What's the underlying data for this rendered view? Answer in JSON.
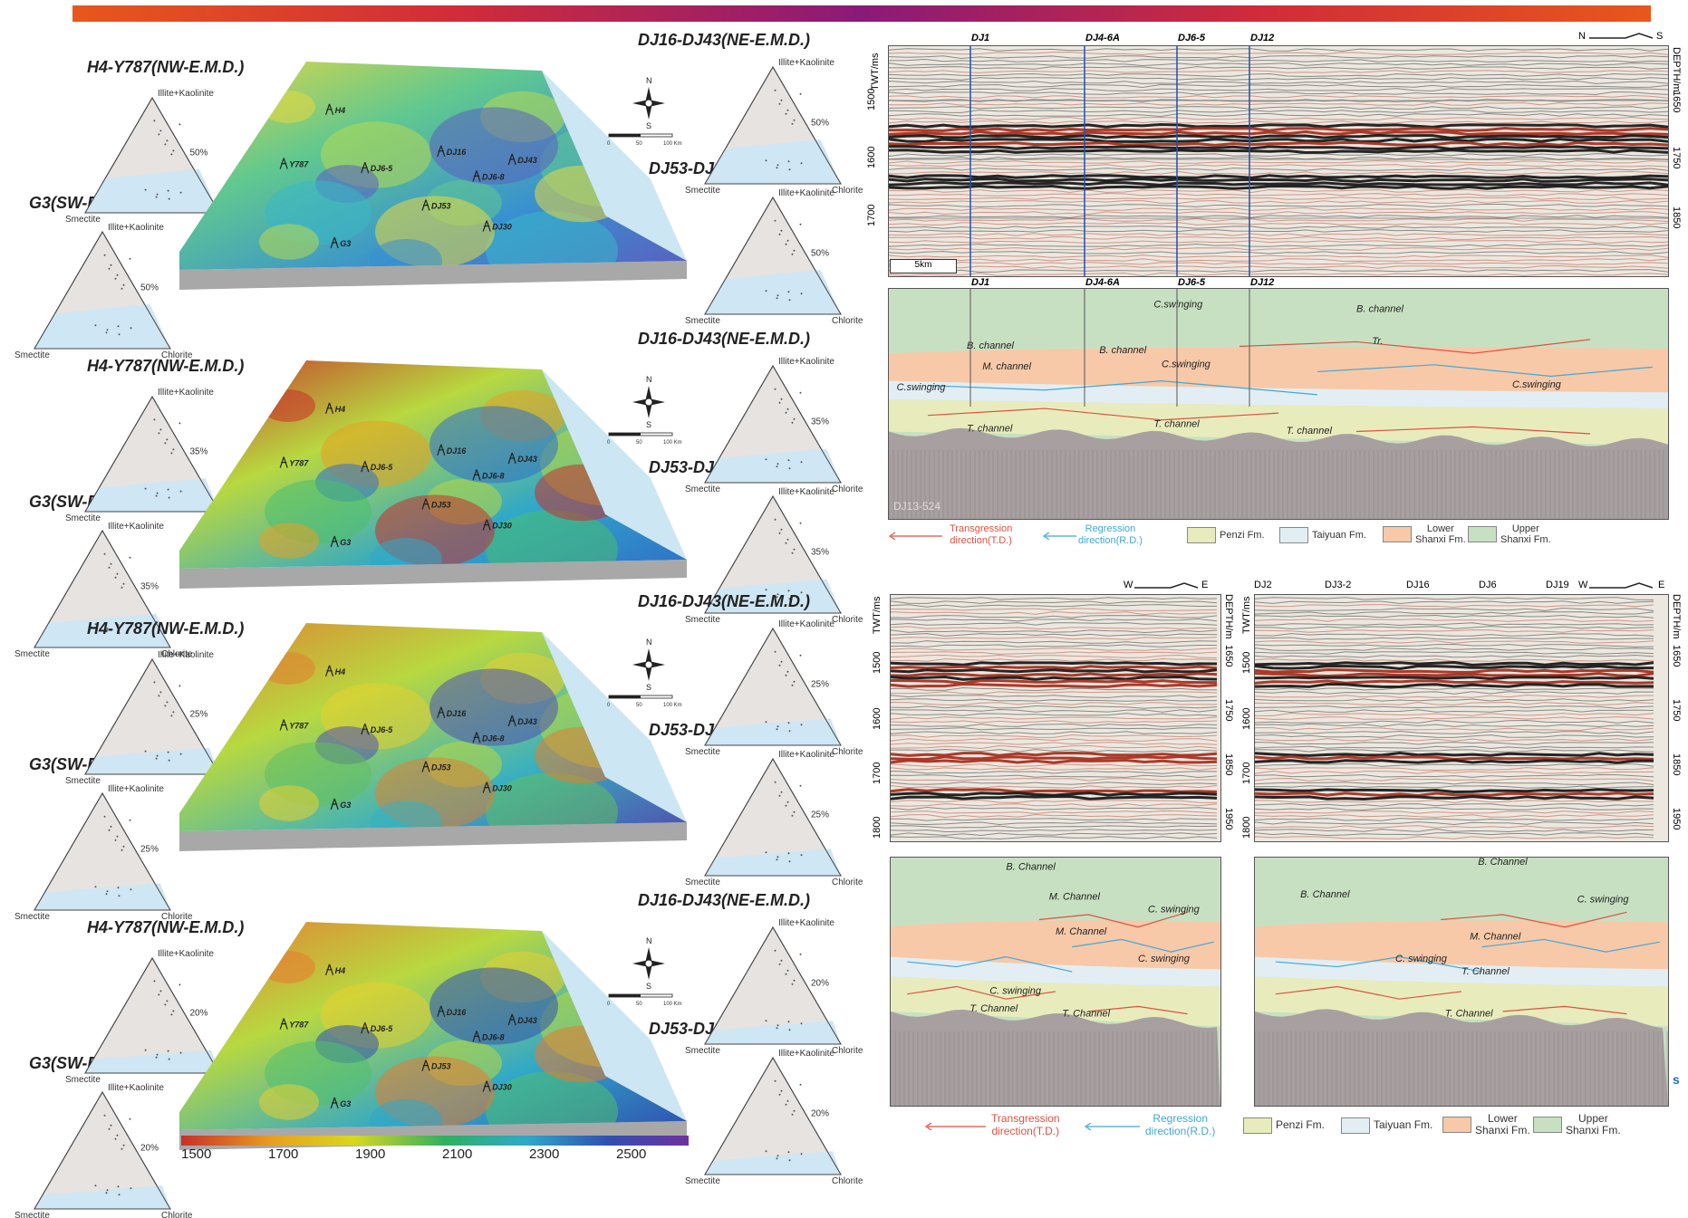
{
  "maps": [
    {
      "t_nw": "H4-Y787(NW-E.M.D.)",
      "t_sw": "G3(SW-E.M.D.)",
      "t_ne": "DJ16-DJ43(NE-E.M.D.)",
      "t_se": "DJ53-DJ30(SE-E.M.D.)",
      "pct_nw": "50%",
      "pct_sw": "50%",
      "pct_ne": "50%",
      "pct_se": "50%",
      "wells": [
        "H4",
        "Y787",
        "DJ6-5",
        "DJ16",
        "DJ6-8",
        "DJ43",
        "DJ53",
        "DJ30",
        "G3"
      ]
    },
    {
      "t_nw": "H4-Y787(NW-E.M.D.)",
      "t_sw": "G3(SW-E.M.D.)",
      "t_ne": "DJ16-DJ43(NE-E.M.D.)",
      "t_se": "DJ53-DJ30(SE-E.M.D.)",
      "pct_nw": "35%",
      "pct_sw": "35%",
      "pct_ne": "35%",
      "pct_se": "35%",
      "wells": [
        "H4",
        "Y787",
        "DJ6-5",
        "DJ16",
        "DJ6-8",
        "DJ43",
        "DJ53",
        "DJ30",
        "G3"
      ]
    },
    {
      "t_nw": "H4-Y787(NW-E.M.D.)",
      "t_sw": "G3(SW-E.M.D.)",
      "t_ne": "DJ16-DJ43(NE-E.M.D.)",
      "t_se": "DJ53-DJ30(SE-E.M.D.)",
      "pct_nw": "25%",
      "pct_sw": "25%",
      "pct_ne": "25%",
      "pct_se": "25%",
      "wells": [
        "H4",
        "Y787",
        "DJ6-5",
        "DJ16",
        "DJ6-8",
        "DJ43",
        "DJ53",
        "DJ30",
        "G3"
      ]
    },
    {
      "t_nw": "H4-Y787(NW-E.M.D.)",
      "t_sw": "G3(SW-E.M.D.)",
      "t_ne": "DJ16-DJ43(NE-E.M.D.)",
      "t_se": "DJ53-DJ30(SE-E.M.D.)",
      "pct_nw": "20%",
      "pct_sw": "20%",
      "pct_ne": "20%",
      "pct_se": "20%",
      "wells": [
        "H4",
        "Y787",
        "DJ6-5",
        "DJ16",
        "DJ6-8",
        "DJ43",
        "DJ53",
        "DJ30",
        "G3"
      ]
    }
  ],
  "ternary": {
    "top": "Illite+Kaolinite",
    "left": "Smectite",
    "right": "Chlorite"
  },
  "compass": {
    "n": "N",
    "s": "S",
    "scale": [
      "0",
      "50",
      "100 Km"
    ]
  },
  "colorbar": {
    "ticks": [
      "1500",
      "1700",
      "1900",
      "2100",
      "2300",
      "2500"
    ],
    "colors": [
      "#c8302a",
      "#e8a020",
      "#d8d820",
      "#2fb060",
      "#30a8c8",
      "#3050b0",
      "#7030a0"
    ]
  },
  "seismic_top": {
    "wells": [
      "DJ1",
      "DJ4-6A",
      "DJ6-5",
      "DJ12"
    ],
    "twt": "TWT/ms",
    "depth": "DEPTH/m",
    "twt_ticks": [
      "1500",
      "1600",
      "1700"
    ],
    "depth_ticks": [
      "1650",
      "1750",
      "1850"
    ],
    "dir_left": "N",
    "dir_right": "S",
    "scale": "5km"
  },
  "interp_top": {
    "wells": [
      "DJ1",
      "DJ4-6A",
      "DJ6-5",
      "DJ12"
    ],
    "labels": [
      "B. channel",
      "B. channel",
      "B. channel",
      "M. channel",
      "T. channel",
      "T. channel",
      "T. channel",
      "Tr.",
      "C.swinging",
      "C.swinging",
      "C.swinging",
      "C.swinging"
    ],
    "line_id": "DJ13-524"
  },
  "legend_top": {
    "transgression": [
      "Transgression",
      "direction(T.D.)"
    ],
    "regression": [
      "Regression",
      "direction(R.D.)"
    ],
    "penzi": "Penzi Fm.",
    "taiyuan": "Taiyuan Fm.",
    "lower": [
      "Lower",
      "Shanxi Fm."
    ],
    "upper": [
      "Upper",
      "Shanxi Fm."
    ]
  },
  "seismic_bl": {
    "twt": "TWT/ms",
    "depth": "DEPTH/m",
    "twt_ticks": [
      "1500",
      "1600",
      "1700",
      "1800"
    ],
    "depth_ticks": [
      "1650",
      "1750",
      "1850",
      "1950"
    ],
    "dir_left": "W",
    "dir_right": "E"
  },
  "seismic_br": {
    "wells": [
      "DJ2",
      "DJ3-2",
      "DJ16",
      "DJ6",
      "DJ19"
    ],
    "twt": "TWT/ms",
    "depth": "DEPTH/m",
    "twt_ticks": [
      "1500",
      "1600",
      "1700",
      "1800"
    ],
    "depth_ticks": [
      "1650",
      "1750",
      "1850",
      "1950"
    ],
    "dir_left": "W",
    "dir_right": "E"
  },
  "interp_bl": {
    "labels": [
      "B. Channel",
      "M. Channel",
      "M. Channel",
      "T. Channel",
      "T. Channel",
      "C. swinging",
      "C. swinging",
      "C. swinging"
    ]
  },
  "interp_br": {
    "labels": [
      "B. Channel",
      "B. Channel",
      "M. Channel",
      "T. Channel",
      "T. Channel",
      "C. swinging",
      "C. swinging"
    ]
  },
  "legend_bottom": {
    "transgression": [
      "Transgression",
      "direction(T.D.)"
    ],
    "regression": [
      "Regression",
      "direction(R.D.)"
    ],
    "penzi": "Penzi Fm.",
    "taiyuan": "Taiyuan Fm.",
    "lower": [
      "Lower",
      "Shanxi Fm."
    ],
    "upper": [
      "Upper",
      "Shanxi Fm."
    ]
  },
  "corner_mark": "s"
}
